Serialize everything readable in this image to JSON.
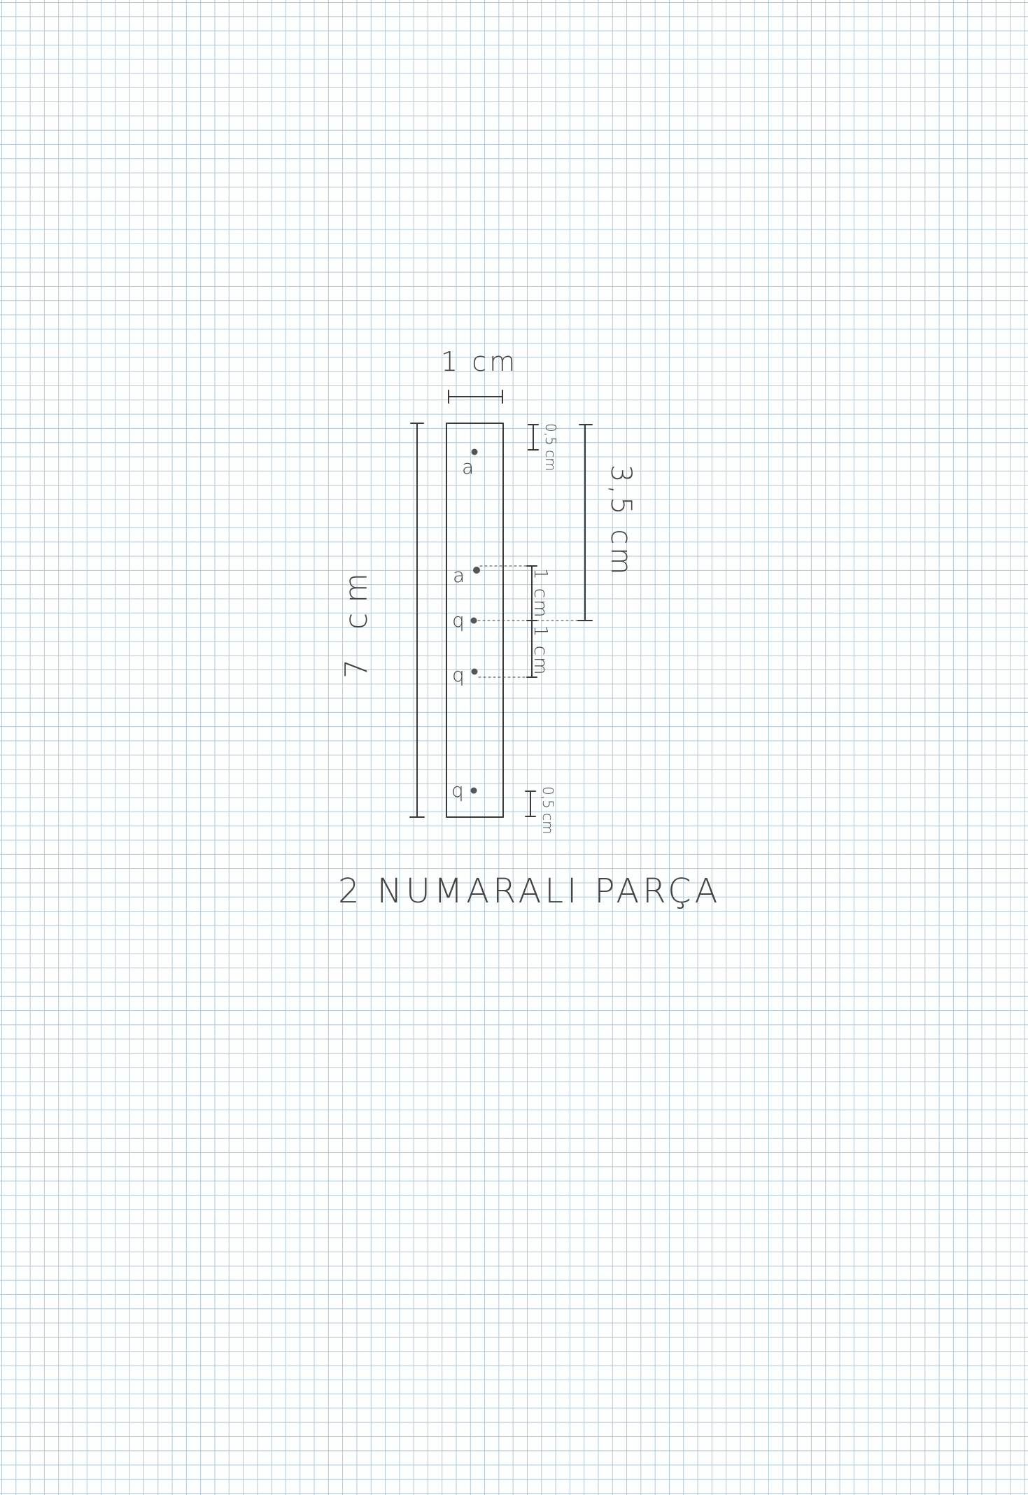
{
  "part": {
    "title": "2 NUMARALI PARÇA",
    "width_label": "1 cm",
    "height_label": "7 cm",
    "half_height_label": "3,5 cm",
    "top_margin_label": "0,5 cm",
    "bottom_margin_label": "0,5 cm",
    "spacing_label_1": "1 cm",
    "spacing_label_2": "1 cm"
  },
  "holes": [
    {
      "label": "a",
      "from_top_cm": 0.5
    },
    {
      "label": "a",
      "from_top_cm": 2.5
    },
    {
      "label": "q",
      "from_top_cm": 3.5
    },
    {
      "label": "q",
      "from_top_cm": 4.5
    },
    {
      "label": "q",
      "from_top_cm": 6.5
    }
  ],
  "colors": {
    "ink": "#3a3a3a",
    "grid": "#b3c8d6",
    "paper": "#fdfefe"
  }
}
